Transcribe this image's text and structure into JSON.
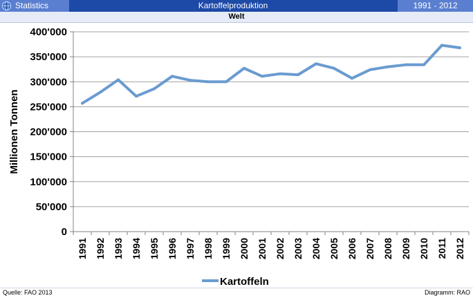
{
  "header": {
    "app_label": "Statistics",
    "title": "Kartoffelproduktion",
    "range": "1991 - 2012"
  },
  "subheader": "Welt",
  "footer": {
    "source": "Quelle: FAO 2013",
    "diagram": "Diagramm: RAO"
  },
  "colors": {
    "header_bg": "#1d49a7",
    "header_accent": "#5a7fd0",
    "line": "#6a9bd0"
  },
  "chart_data": {
    "type": "line",
    "title": "",
    "xlabel": "",
    "ylabel": "Millionen Tonnen",
    "ylim": [
      0,
      400000
    ],
    "yticks": [
      0,
      50000,
      100000,
      150000,
      200000,
      250000,
      300000,
      350000,
      400000
    ],
    "ytick_labels": [
      "0",
      "50'000",
      "100'000",
      "150'000",
      "200'000",
      "250'000",
      "300'000",
      "350'000",
      "400'000"
    ],
    "categories": [
      "1991",
      "1992",
      "1993",
      "1994",
      "1995",
      "1996",
      "1997",
      "1998",
      "1999",
      "2000",
      "2001",
      "2002",
      "2003",
      "2004",
      "2005",
      "2006",
      "2007",
      "2008",
      "2009",
      "2010",
      "2011",
      "2012"
    ],
    "series": [
      {
        "name": "Kartoffeln",
        "values": [
          257000,
          279000,
          304000,
          271000,
          286000,
          311000,
          303000,
          300000,
          300000,
          327000,
          311000,
          316000,
          314000,
          336000,
          327000,
          307000,
          324000,
          330000,
          334000,
          334000,
          373000,
          368000
        ]
      }
    ],
    "grid": true,
    "legend_position": "bottom"
  }
}
